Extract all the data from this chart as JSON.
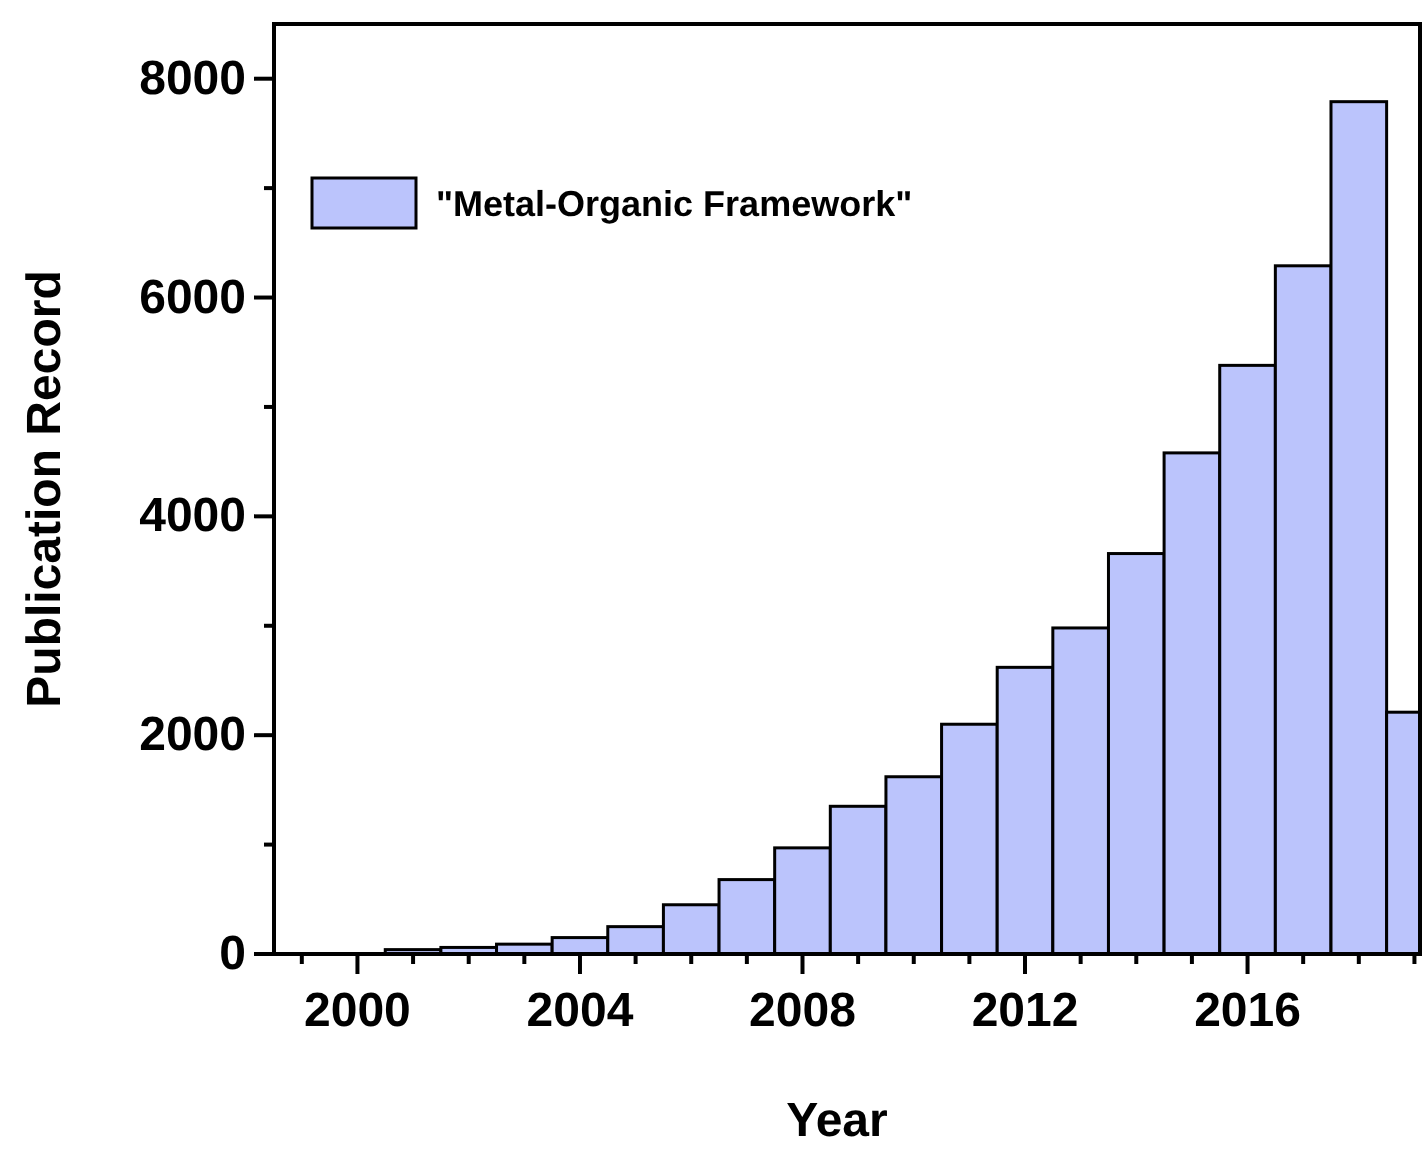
{
  "chart_data": {
    "type": "bar",
    "xlabel": "Year",
    "ylabel": "Publication Record",
    "x": [
      2001,
      2002,
      2003,
      2004,
      2005,
      2006,
      2007,
      2008,
      2009,
      2010,
      2011,
      2012,
      2013,
      2014,
      2015,
      2016,
      2017,
      2018,
      2019
    ],
    "series": [
      {
        "name": "\"Metal-Organic Framework\"",
        "color": "#bbc4fc",
        "values": [
          40,
          60,
          90,
          150,
          250,
          450,
          680,
          970,
          1350,
          1620,
          2100,
          2620,
          2980,
          3660,
          4580,
          5380,
          6290,
          7790,
          2210
        ]
      }
    ],
    "xlim": [
      1998.5,
      2019.1
    ],
    "xticks": [
      {
        "value": 1999,
        "label": null
      },
      2000,
      {
        "value": 2001,
        "label": null
      },
      {
        "value": 2002,
        "label": null
      },
      {
        "value": 2003,
        "label": null
      },
      2004,
      {
        "value": 2005,
        "label": null
      },
      {
        "value": 2006,
        "label": null
      },
      {
        "value": 2007,
        "label": null
      },
      2008,
      {
        "value": 2009,
        "label": null
      },
      {
        "value": 2010,
        "label": null
      },
      {
        "value": 2011,
        "label": null
      },
      2012,
      {
        "value": 2013,
        "label": null
      },
      {
        "value": 2014,
        "label": null
      },
      {
        "value": 2015,
        "label": null
      },
      2016,
      {
        "value": 2017,
        "label": null
      },
      {
        "value": 2018,
        "label": null
      },
      {
        "value": 2019,
        "label": null
      }
    ],
    "ylim": [
      0,
      8500
    ],
    "yticks": [
      0,
      {
        "value": 1000,
        "label": null
      },
      2000,
      {
        "value": 3000,
        "label": null
      },
      4000,
      {
        "value": 5000,
        "label": null
      },
      6000,
      {
        "value": 7000,
        "label": null
      },
      8000
    ],
    "legend": "top left",
    "grid": false
  }
}
